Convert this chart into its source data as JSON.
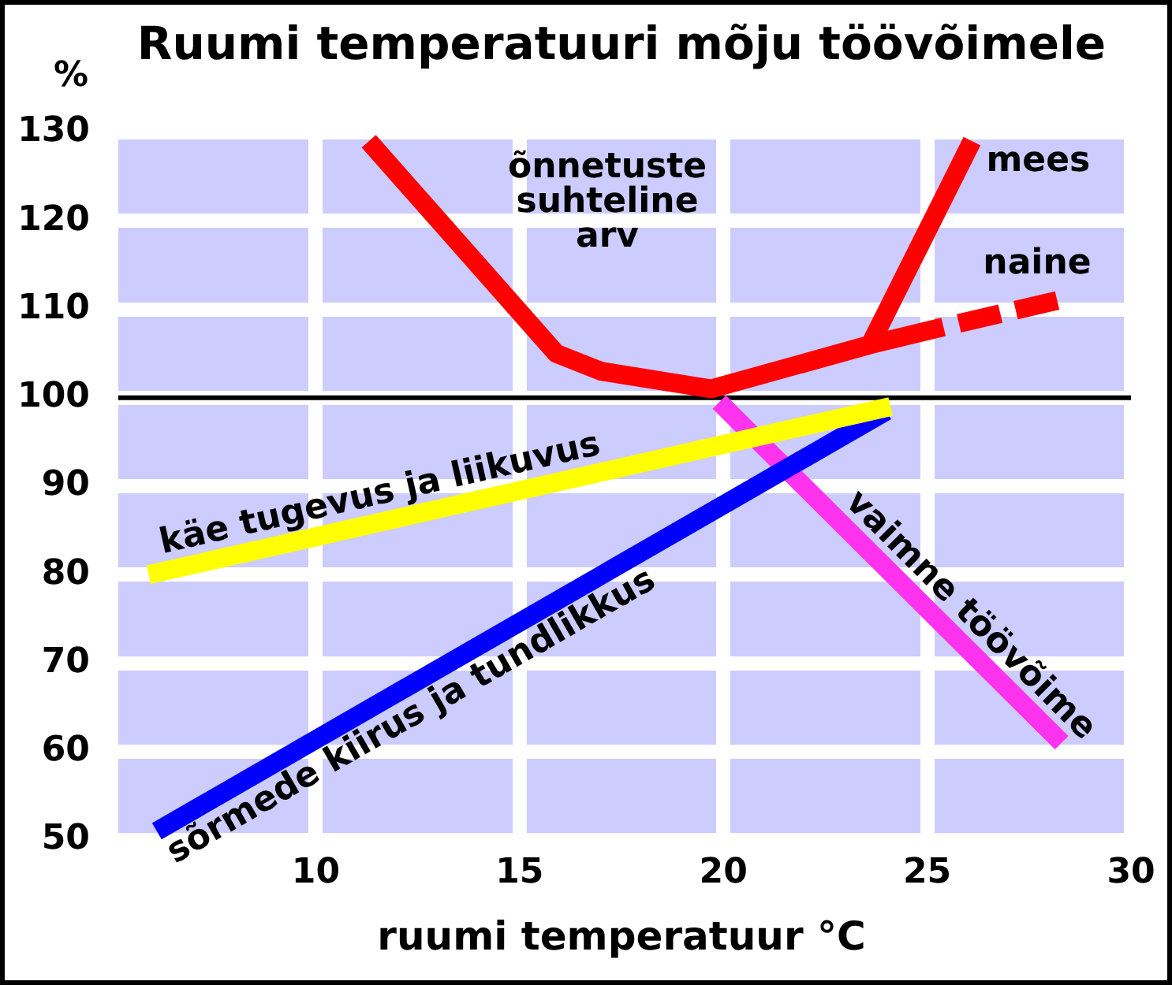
{
  "chart_data": {
    "type": "line",
    "title": "Ruumi temperatuuri mõju töövõimele",
    "xlabel": "ruumi temperatuur °C",
    "ylabel": "%",
    "xlim": [
      5,
      30
    ],
    "xticks": [
      10,
      15,
      20,
      25,
      30
    ],
    "ylim": [
      50,
      130
    ],
    "yticks": [
      50,
      60,
      70,
      80,
      90,
      100,
      110,
      120,
      130
    ],
    "grid": true,
    "ref_lines": [
      {
        "axis": "y",
        "value": 100,
        "color": "#000000"
      }
    ],
    "series": [
      {
        "name": "õnnetuste suhteline arv",
        "color": "#ff0000",
        "x": [
          11.3,
          15.9,
          17.0,
          19.7,
          23.6,
          25.4
        ],
        "values": [
          129,
          105,
          103,
          101,
          106,
          108
        ]
      },
      {
        "name": "mees",
        "color": "#ff0000",
        "x": [
          23.6,
          26.1
        ],
        "values": [
          106,
          129
        ]
      },
      {
        "name": "naine",
        "color": "#ff0000",
        "line_style": "dashed",
        "x": [
          25.4,
          28.2
        ],
        "values": [
          108,
          111
        ]
      },
      {
        "name": "käe tugevus ja liikuvus",
        "color": "#ffff00",
        "x": [
          5.9,
          24.1
        ],
        "values": [
          80,
          99
        ]
      },
      {
        "name": "sõrmede kiirus ja tundlikkus",
        "color": "#0000ff",
        "x": [
          6.1,
          24.0
        ],
        "values": [
          51,
          98.5
        ]
      },
      {
        "name": "vaimne töövõime",
        "color": "#ff33ee",
        "x": [
          19.9,
          28.3
        ],
        "values": [
          99.5,
          61
        ]
      }
    ]
  }
}
